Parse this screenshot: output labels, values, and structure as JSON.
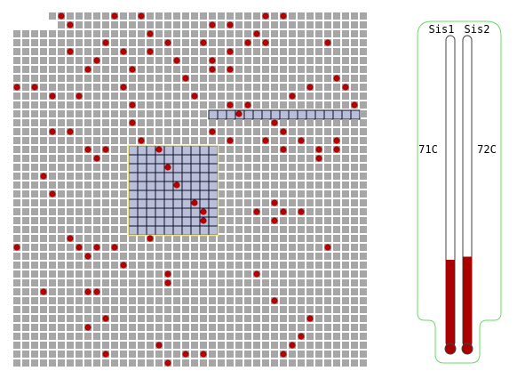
{
  "game": {
    "grid": {
      "rows": 40,
      "cols": 40,
      "cleared_cells": [
        [
          0,
          0
        ],
        [
          0,
          1
        ],
        [
          0,
          2
        ],
        [
          0,
          3
        ],
        [
          1,
          0
        ],
        [
          1,
          1
        ],
        [
          1,
          2
        ],
        [
          1,
          3
        ],
        [
          1,
          4
        ]
      ],
      "selection": {
        "row_start": 15,
        "col_start": 13,
        "rows": 10,
        "cols": 10
      },
      "highlighted_strip": {
        "row": 11,
        "col_start": 22,
        "cols": 17
      },
      "dots": [
        [
          0,
          5
        ],
        [
          0,
          11
        ],
        [
          0,
          14
        ],
        [
          0,
          28
        ],
        [
          0,
          30
        ],
        [
          1,
          6
        ],
        [
          1,
          22
        ],
        [
          1,
          24
        ],
        [
          2,
          15
        ],
        [
          2,
          27
        ],
        [
          3,
          10
        ],
        [
          3,
          17
        ],
        [
          3,
          21
        ],
        [
          3,
          26
        ],
        [
          3,
          28
        ],
        [
          3,
          35
        ],
        [
          4,
          6
        ],
        [
          4,
          12
        ],
        [
          4,
          15
        ],
        [
          4,
          24
        ],
        [
          5,
          9
        ],
        [
          5,
          18
        ],
        [
          5,
          22
        ],
        [
          6,
          8
        ],
        [
          6,
          13
        ],
        [
          6,
          22
        ],
        [
          6,
          24
        ],
        [
          7,
          19
        ],
        [
          7,
          36
        ],
        [
          8,
          0
        ],
        [
          8,
          2
        ],
        [
          8,
          12
        ],
        [
          8,
          33
        ],
        [
          8,
          37
        ],
        [
          9,
          4
        ],
        [
          9,
          7
        ],
        [
          9,
          20
        ],
        [
          9,
          31
        ],
        [
          10,
          13
        ],
        [
          10,
          24
        ],
        [
          10,
          26
        ],
        [
          10,
          38
        ],
        [
          11,
          25
        ],
        [
          12,
          13
        ],
        [
          12,
          29
        ],
        [
          13,
          4
        ],
        [
          13,
          6
        ],
        [
          13,
          22
        ],
        [
          13,
          30
        ],
        [
          14,
          14
        ],
        [
          14,
          24
        ],
        [
          14,
          28
        ],
        [
          14,
          32
        ],
        [
          14,
          36
        ],
        [
          15,
          8
        ],
        [
          15,
          10
        ],
        [
          15,
          16
        ],
        [
          15,
          30
        ],
        [
          15,
          34
        ],
        [
          15,
          36
        ],
        [
          16,
          9
        ],
        [
          16,
          34
        ],
        [
          17,
          17
        ],
        [
          18,
          3
        ],
        [
          19,
          18
        ],
        [
          20,
          4
        ],
        [
          21,
          20
        ],
        [
          21,
          29
        ],
        [
          22,
          21
        ],
        [
          22,
          27
        ],
        [
          22,
          30
        ],
        [
          22,
          32
        ],
        [
          23,
          21
        ],
        [
          23,
          29
        ],
        [
          25,
          6
        ],
        [
          25,
          15
        ],
        [
          26,
          0
        ],
        [
          26,
          7
        ],
        [
          26,
          9
        ],
        [
          26,
          11
        ],
        [
          26,
          35
        ],
        [
          27,
          8
        ],
        [
          28,
          12
        ],
        [
          29,
          17
        ],
        [
          29,
          27
        ],
        [
          30,
          17
        ],
        [
          31,
          3
        ],
        [
          31,
          8
        ],
        [
          31,
          9
        ],
        [
          32,
          29
        ],
        [
          34,
          10
        ],
        [
          34,
          33
        ],
        [
          35,
          8
        ],
        [
          36,
          32
        ],
        [
          37,
          16
        ],
        [
          37,
          31
        ],
        [
          38,
          10
        ],
        [
          38,
          19
        ],
        [
          38,
          21
        ],
        [
          38,
          30
        ],
        [
          39,
          17
        ]
      ]
    },
    "thermometers": [
      {
        "label": "Sis1",
        "reading": "71C",
        "fill_fraction": 0.28
      },
      {
        "label": "Sis2",
        "reading": "72C",
        "fill_fraction": 0.29
      }
    ],
    "colors": {
      "cell": "#a6a6a6",
      "grid_bg": "#ffffff",
      "dot": "#b30000",
      "selection_cell": "#b9bfd9",
      "selection_line": "#0d1022",
      "selection_border": "#f0e68c",
      "strip_cell": "#b9bfd9",
      "strip_line": "#0d1022",
      "mercury": "#aa0000",
      "panel_border": "#66dd66",
      "tube_border": "#444444"
    }
  }
}
